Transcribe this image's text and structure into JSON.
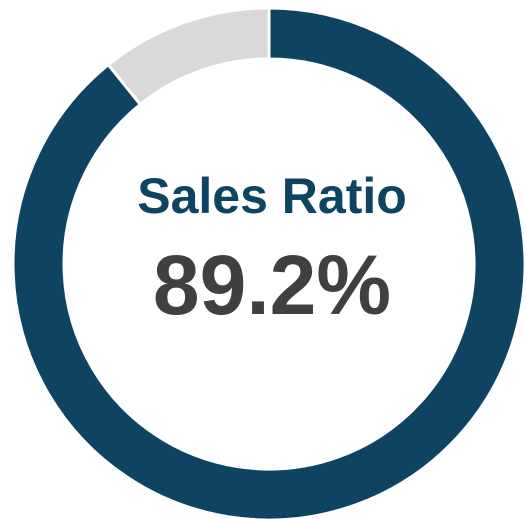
{
  "chart_data": {
    "type": "donut",
    "title": "Sales Ratio",
    "values": [
      89.2,
      10.8
    ],
    "value_labels": [
      "89.2%",
      null
    ],
    "colors": [
      "#0e4461",
      "#d9d9d9"
    ]
  }
}
